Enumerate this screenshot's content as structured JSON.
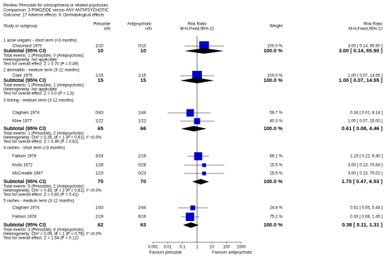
{
  "header": {
    "review": "Review:  Pimozide for schizophrenia or related psychoses",
    "comparison": "Comparison:  3 PIMOZIDE versus ANY ANTIPSYCHOTIC",
    "outcome": "Outcome:  17 Adverse effects: 6. Dermatological effects"
  },
  "columns": {
    "study": "Study or subgroup",
    "pimozide": "Pimozide",
    "pimozide_unit": "n/N",
    "antipsychotic": "Antipsychotic",
    "antipsychotic_unit": "n/N",
    "plot": "Risk Ratio",
    "plot_method": "M-H,Fixed,95% CI",
    "weight": "Weight",
    "result": "Risk Ratio",
    "result_method": "M-H,Fixed,95% CI"
  },
  "groups": [
    {
      "title": "1 acne vulgaris - short term (<3 months)",
      "studies": [
        {
          "name": "Chouinard 1970",
          "pimozide": "1/10",
          "antipsychotic": "0/10",
          "weight": 100,
          "weight_label": "100.0 %",
          "estimate": 3.0,
          "ci": [
            0.14,
            65.9
          ],
          "label": "3.00 [ 0.14, 65.90 ]"
        }
      ],
      "subtotal": {
        "name": "Subtotal (95% CI)",
        "pimozide": 10,
        "antipsychotic": 10,
        "weight": 100,
        "weight_label": "100.0 %",
        "estimate": 3.0,
        "ci": [
          0.14,
          65.9
        ],
        "label": "3.00 [ 0.14, 65.90 ]"
      },
      "notes": [
        "Total events: 1 (Pimozide), 0 (Antipsychotic)",
        "Heterogeneity: not applicable",
        "Test for overall effect: Z = 0.70  (P = 0.49)"
      ]
    },
    {
      "title": "2 dermatitis - medium term (3-12 months)",
      "studies": [
        {
          "name": "Clark 1975",
          "pimozide": "1/15",
          "antipsychotic": "1/15",
          "weight": 100,
          "weight_label": "100.0 %",
          "estimate": 1.0,
          "ci": [
            0.07,
            14.55
          ],
          "label": "1.00 [ 0.07, 14.55 ]"
        }
      ],
      "subtotal": {
        "name": "Subtotal (95% CI)",
        "pimozide": 15,
        "antipsychotic": 15,
        "weight": 100,
        "weight_label": "100.0 %",
        "estimate": 1.0,
        "ci": [
          0.07,
          14.55
        ],
        "label": "1.00 [ 0.07, 14.55 ]"
      },
      "notes": [
        "Total events: 1 (Pimozide), 1 (Antipsychotic)",
        "Heterogeneity: not applicable",
        "Test for overall effect: Z = 0.0  (P = 1.0)"
      ]
    },
    {
      "title": "3 itching - medium term (3-12 months)",
      "studies": [
        {
          "name": "Clagham 1974",
          "pimozide": "0/43",
          "antipsychotic": "1/44",
          "weight": 59.7,
          "weight_label": "59.7 %",
          "estimate": 0.34,
          "ci": [
            0.01,
            8.14
          ],
          "label": "0.34 [ 0.01, 8.14 ]"
        },
        {
          "name": "Kline 1977",
          "pimozide": "1/22",
          "antipsychotic": "1/22",
          "weight": 40.3,
          "weight_label": "40.3 %",
          "estimate": 1.0,
          "ci": [
            0.07,
            15.0
          ],
          "label": "1.00 [ 0.07, 15.00 ]"
        }
      ],
      "subtotal": {
        "name": "Subtotal (95% CI)",
        "pimozide": 65,
        "antipsychotic": 66,
        "weight": 100,
        "weight_label": "100.0 %",
        "estimate": 0.61,
        "ci": [
          0.08,
          4.46
        ],
        "label": "0.61 [ 0.08, 4.46 ]"
      },
      "notes": [
        "Total events: 1 (Pimozide), 2 (Antipsychotic)",
        "Heterogeneity: Chi² = 0.26, df = 1 (P = 0.61); I² =0.0%",
        "Test for overall effect: Z = 0.49  (P = 0.62)"
      ]
    },
    {
      "title": "4 rashes - short term (<3 months)",
      "studies": [
        {
          "name": "Falloon 1978",
          "pimozide": "3/24",
          "antipsychotic": "2/19",
          "weight": 69.1,
          "weight_label": "69.1 %",
          "estimate": 1.19,
          "ci": [
            0.22,
            6.4
          ],
          "label": "1.19 [ 0.22, 6.40 ]"
        },
        {
          "name": "Kudo 1972",
          "pimozide": "1/28",
          "antipsychotic": "0/28",
          "weight": 15.5,
          "weight_label": "15.5 %",
          "estimate": 3.0,
          "ci": [
            0.13,
            70.64
          ],
          "label": "3.00 [ 0.13, 70.64 ]"
        },
        {
          "name": "McCreadie 1987",
          "pimozide": "1/23",
          "antipsychotic": "0/23",
          "weight": 15.5,
          "weight_label": "15.5 %",
          "estimate": 3.0,
          "ci": [
            0.13,
            70.02
          ],
          "label": "3.00 [ 0.13, 70.02 ]"
        }
      ],
      "subtotal": {
        "name": "Subtotal (95% CI)",
        "pimozide": 75,
        "antipsychotic": 70,
        "weight": 100,
        "weight_label": "100.0 %",
        "estimate": 1.75,
        "ci": [
          0.47,
          6.53
        ],
        "label": "1.75 [ 0.47, 6.53 ]"
      },
      "notes": [
        "Total events: 5 (Pimozide), 2 (Antipsychotic)",
        "Heterogeneity: Chi² = 0.43, df = 2 (P = 0.81); I² =0.0%",
        "Test for overall effect: Z = 0.83  (P = 0.41)"
      ]
    },
    {
      "title": "5 rashes - medium term (3-12 months)",
      "studies": [
        {
          "name": "Clagham 1974",
          "pimozide": "1/43",
          "antipsychotic": "2/44",
          "weight": 24.8,
          "weight_label": "24.8 %",
          "estimate": 0.51,
          "ci": [
            0.05,
            5.44
          ],
          "label": "0.51 [ 0.05, 5.44 ]"
        },
        {
          "name": "Falloon 1978",
          "pimozide": "2/19",
          "antipsychotic": "6/19",
          "weight": 75.2,
          "weight_label": "75.2 %",
          "estimate": 0.33,
          "ci": [
            0.08,
            1.45
          ],
          "label": "0.33 [ 0.08, 1.45 ]"
        }
      ],
      "subtotal": {
        "name": "Subtotal (95% CI)",
        "pimozide": 62,
        "antipsychotic": 63,
        "weight": 100,
        "weight_label": "100.0 %",
        "estimate": 0.38,
        "ci": [
          0.11,
          1.31
        ],
        "label": "0.38 [ 0.11, 1.31 ]"
      },
      "notes": [
        "Total events: 3 (Pimozide), 8 (Antipsychotic)",
        "Heterogeneity: Chi² = 0.09, df = 1 (P = 0.76); I² =0.0%",
        "Test for overall effect: Z = 1.54  (P = 0.12)"
      ]
    }
  ],
  "axis": {
    "log": true,
    "xlim": [
      0.001,
      1000
    ],
    "xticks": [
      0.001,
      0.01,
      0.1,
      1,
      10,
      100,
      1000
    ],
    "left_label": "Favours pimozide",
    "right_label": "Favours antipsychotic"
  },
  "colors": {
    "square": "#0000cc",
    "diamond": "#000000"
  }
}
